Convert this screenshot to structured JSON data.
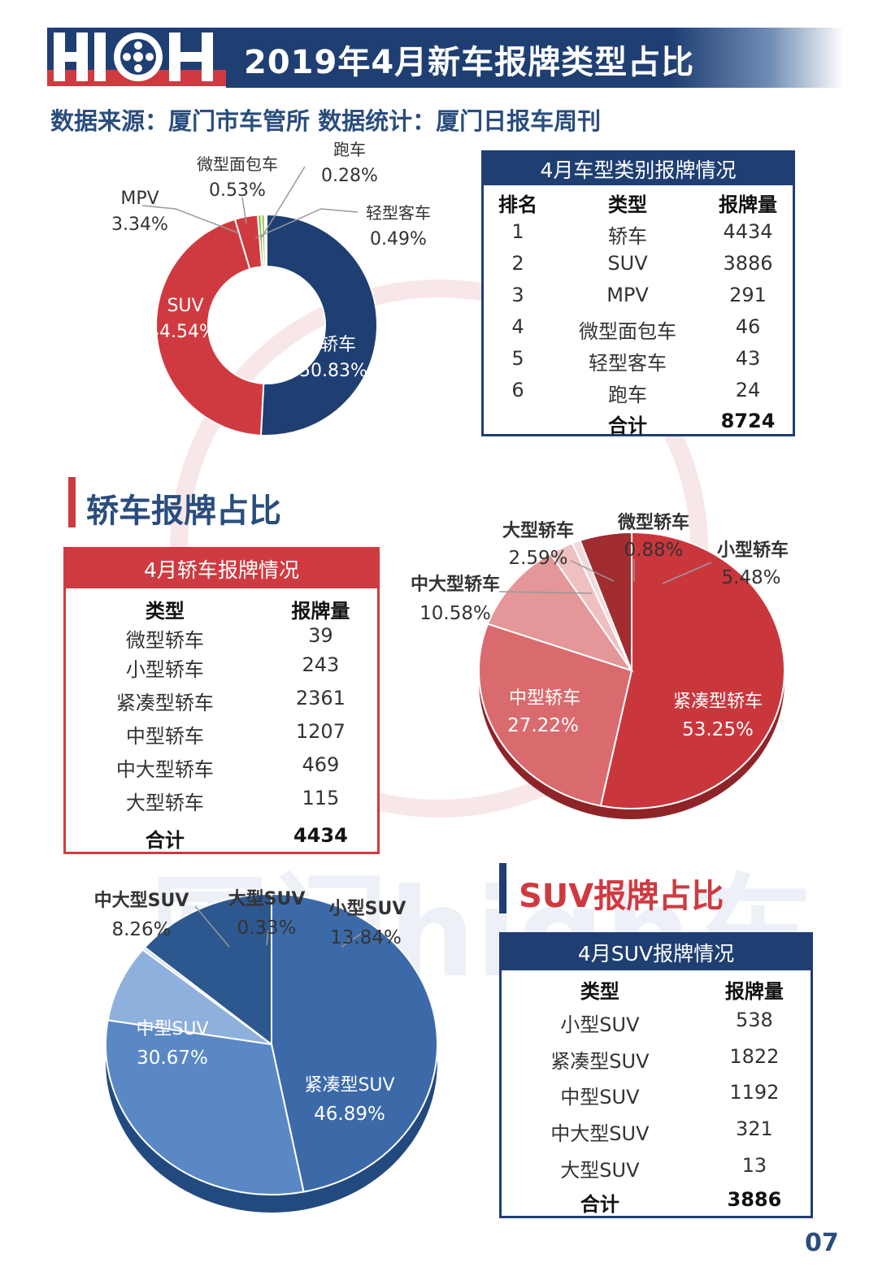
{
  "header": {
    "logo_text": "HIGH",
    "title": "2019年4月新车报牌类型占比",
    "source": "数据来源：厦门市车管所  数据统计：厦门日报车周刊"
  },
  "watermark_text": "厦门high车",
  "colors": {
    "navy": "#1f3f73",
    "red": "#cf3a40",
    "green": "#8cc152",
    "blue_mid": "#4a79b8"
  },
  "table_types": {
    "title": "4月车型类别报牌情况",
    "headers": [
      "排名",
      "类型",
      "报牌量"
    ],
    "rows": [
      {
        "rank": "1",
        "type": "轿车",
        "count": "4434"
      },
      {
        "rank": "2",
        "type": "SUV",
        "count": "3886"
      },
      {
        "rank": "3",
        "type": "MPV",
        "count": "291"
      },
      {
        "rank": "4",
        "type": "微型面包车",
        "count": "46"
      },
      {
        "rank": "5",
        "type": "轻型客车",
        "count": "43"
      },
      {
        "rank": "6",
        "type": "跑车",
        "count": "24"
      }
    ],
    "total_label": "合计",
    "total": "8724"
  },
  "section_sedan": {
    "title": "轿车报牌占比"
  },
  "table_sedan": {
    "title": "4月轿车报牌情况",
    "headers": [
      "类型",
      "报牌量"
    ],
    "rows": [
      {
        "type": "微型轿车",
        "count": "39"
      },
      {
        "type": "小型轿车",
        "count": "243"
      },
      {
        "type": "紧凑型轿车",
        "count": "2361"
      },
      {
        "type": "中型轿车",
        "count": "1207"
      },
      {
        "type": "中大型轿车",
        "count": "469"
      },
      {
        "type": "大型轿车",
        "count": "115"
      }
    ],
    "total_label": "合计",
    "total": "4434"
  },
  "section_suv": {
    "title": "SUV报牌占比"
  },
  "table_suv": {
    "title": "4月SUV报牌情况",
    "headers": [
      "类型",
      "报牌量"
    ],
    "rows": [
      {
        "type": "小型SUV",
        "count": "538"
      },
      {
        "type": "紧凑型SUV",
        "count": "1822"
      },
      {
        "type": "中型SUV",
        "count": "1192"
      },
      {
        "type": "中大型SUV",
        "count": "321"
      },
      {
        "type": "大型SUV",
        "count": "13"
      }
    ],
    "total_label": "合计",
    "total": "3886"
  },
  "page_number": "07",
  "chart_data": [
    {
      "type": "pie",
      "variant": "donut",
      "slices": [
        {
          "label": "轿车",
          "pct_text": "50.83%",
          "value": 50.83,
          "color": "#1f3f73"
        },
        {
          "label": "SUV",
          "pct_text": "44.54%",
          "value": 44.54,
          "color": "#cf3a40"
        },
        {
          "label": "MPV",
          "pct_text": "3.34%",
          "value": 3.34,
          "color": "#cf3a40"
        },
        {
          "label": "微型面包车",
          "pct_text": "0.53%",
          "value": 0.53,
          "color": "#8cc152"
        },
        {
          "label": "轻型客车",
          "pct_text": "0.49%",
          "value": 0.49,
          "color": "#8cc152"
        },
        {
          "label": "跑车",
          "pct_text": "0.28%",
          "value": 0.28,
          "color": "#ffffff"
        }
      ]
    },
    {
      "type": "pie",
      "variant": "3d",
      "slices": [
        {
          "label": "紧凑型轿车",
          "pct_text": "53.25%",
          "value": 53.25,
          "color": "#c9373d"
        },
        {
          "label": "中型轿车",
          "pct_text": "27.22%",
          "value": 27.22,
          "color": "#d96b6e"
        },
        {
          "label": "中大型轿车",
          "pct_text": "10.58%",
          "value": 10.58,
          "color": "#e49698"
        },
        {
          "label": "大型轿车",
          "pct_text": "2.59%",
          "value": 2.59,
          "color": "#eec0c1"
        },
        {
          "label": "微型轿车",
          "pct_text": "0.88%",
          "value": 0.88,
          "color": "#f4d8d9"
        },
        {
          "label": "小型轿车",
          "pct_text": "5.48%",
          "value": 5.48,
          "color": "#a12d31"
        }
      ]
    },
    {
      "type": "pie",
      "variant": "3d",
      "slices": [
        {
          "label": "紧凑型SUV",
          "pct_text": "46.89%",
          "value": 46.89,
          "color": "#3c6aa8"
        },
        {
          "label": "中型SUV",
          "pct_text": "30.67%",
          "value": 30.67,
          "color": "#5a88c5"
        },
        {
          "label": "中大型SUV",
          "pct_text": "8.26%",
          "value": 8.26,
          "color": "#8eb0dc"
        },
        {
          "label": "大型SUV",
          "pct_text": "0.33%",
          "value": 0.33,
          "color": "#c4d6ee"
        },
        {
          "label": "小型SUV",
          "pct_text": "13.84%",
          "value": 13.84,
          "color": "#2d578f"
        }
      ]
    }
  ]
}
